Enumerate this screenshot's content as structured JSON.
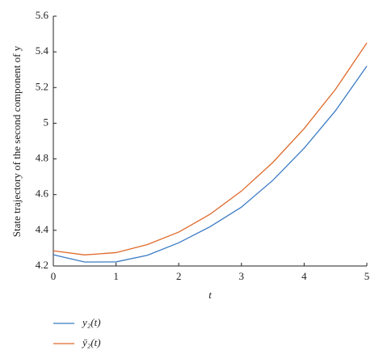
{
  "chart_data": {
    "type": "line",
    "y_label": "State trajectory of the second component of y",
    "x_label": "t",
    "x": [
      0,
      0.5,
      1,
      1.5,
      2,
      2.5,
      3,
      3.5,
      4,
      4.5,
      5
    ],
    "series": [
      {
        "name": "y₂(t)",
        "color": "#3b7bc4",
        "values": [
          4.263,
          4.222,
          4.223,
          4.26,
          4.33,
          4.42,
          4.53,
          4.68,
          4.86,
          5.07,
          5.32
        ]
      },
      {
        "name": "ȳ₂(t)",
        "color": "#e0692a",
        "values": [
          4.285,
          4.262,
          4.275,
          4.32,
          4.39,
          4.49,
          4.62,
          4.78,
          4.97,
          5.19,
          5.45
        ]
      }
    ],
    "xlim": [
      0,
      5
    ],
    "xticks": [
      0,
      1,
      2,
      3,
      4,
      5
    ],
    "ylim": [
      4.2,
      5.6
    ],
    "yticks": [
      4.2,
      4.4,
      4.6,
      4.8,
      5,
      5.2,
      5.4,
      5.6
    ]
  }
}
